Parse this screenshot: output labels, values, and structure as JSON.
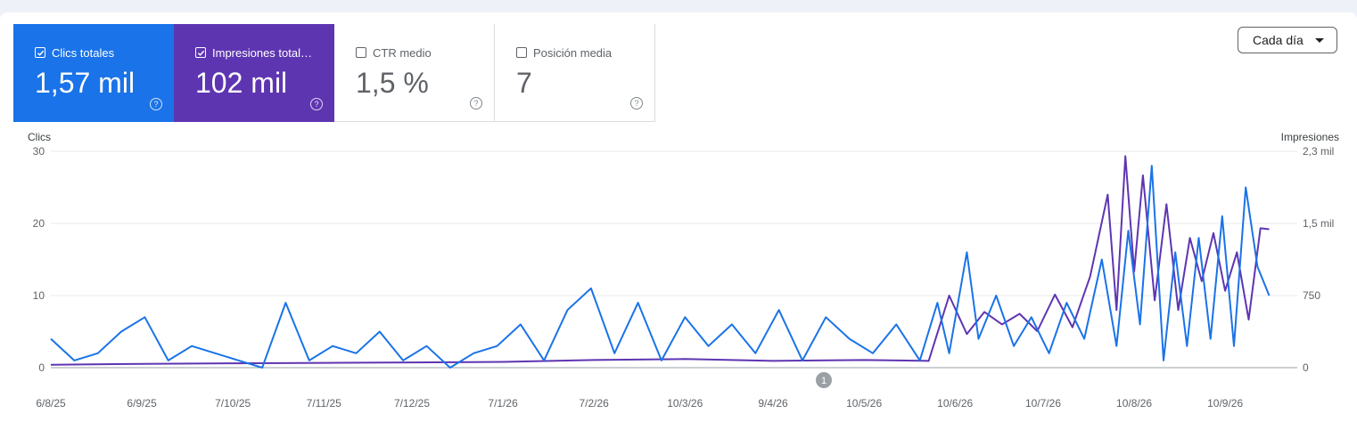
{
  "metrics": {
    "clicks": {
      "label": "Clics totales",
      "value": "1,57 mil",
      "checked": true,
      "color": "#1a73e8"
    },
    "impressions": {
      "label": "Impresiones totales",
      "value": "102 mil",
      "checked": true,
      "color": "#5e35b1"
    },
    "ctr": {
      "label": "CTR medio",
      "value": "1,5 %",
      "checked": false
    },
    "position": {
      "label": "Posición media",
      "value": "7",
      "checked": false
    }
  },
  "controls": {
    "granularity": "Cada día"
  },
  "annotation_badge": "1",
  "chart_data": {
    "type": "line",
    "left_axis": {
      "label": "Clics",
      "ticks": [
        "0",
        "10",
        "20",
        "30"
      ],
      "range": [
        0,
        30
      ]
    },
    "right_axis": {
      "label": "Impresiones",
      "ticks": [
        "0",
        "750",
        "1,5 mil",
        "2,3 mil"
      ],
      "range": [
        0,
        2250
      ]
    },
    "x_tick_labels": [
      "6/8/25",
      "6/9/25",
      "7/10/25",
      "7/11/25",
      "7/12/25",
      "7/1/26",
      "7/2/26",
      "10/3/26",
      "9/4/26",
      "10/5/26",
      "10/6/26",
      "10/7/26",
      "10/8/26",
      "10/9/26"
    ],
    "x_ticks": [
      "2025-08-06",
      "2025-09-06",
      "2025-10-07",
      "2025-11-07",
      "2025-12-07",
      "2026-01-07",
      "2026-02-07",
      "2026-03-10",
      "2026-04-09",
      "2026-05-10",
      "2026-06-10",
      "2026-07-10",
      "2026-08-10",
      "2026-09-10"
    ],
    "series": [
      {
        "name": "Clics",
        "axis": "left",
        "color": "#1a73e8",
        "x": [
          "2025-08-06",
          "2025-08-14",
          "2025-08-22",
          "2025-08-30",
          "2025-09-07",
          "2025-09-15",
          "2025-09-23",
          "2025-10-01",
          "2025-10-09",
          "2025-10-17",
          "2025-10-25",
          "2025-11-02",
          "2025-11-10",
          "2025-11-18",
          "2025-11-26",
          "2025-12-04",
          "2025-12-12",
          "2025-12-20",
          "2025-12-28",
          "2026-01-05",
          "2026-01-13",
          "2026-01-21",
          "2026-01-29",
          "2026-02-06",
          "2026-02-14",
          "2026-02-22",
          "2026-03-02",
          "2026-03-10",
          "2026-03-18",
          "2026-03-26",
          "2026-04-03",
          "2026-04-11",
          "2026-04-19",
          "2026-04-27",
          "2026-05-05",
          "2026-05-13",
          "2026-05-21",
          "2026-05-29",
          "2026-06-04",
          "2026-06-08",
          "2026-06-14",
          "2026-06-18",
          "2026-06-24",
          "2026-06-30",
          "2026-07-06",
          "2026-07-12",
          "2026-07-18",
          "2026-07-24",
          "2026-07-30",
          "2026-08-04",
          "2026-08-08",
          "2026-08-12",
          "2026-08-16",
          "2026-08-20",
          "2026-08-24",
          "2026-08-28",
          "2026-09-01",
          "2026-09-05",
          "2026-09-09",
          "2026-09-13",
          "2026-09-17",
          "2026-09-21",
          "2026-09-25"
        ],
        "values": [
          4,
          1,
          2,
          5,
          7,
          1,
          3,
          2,
          1,
          0,
          9,
          1,
          3,
          2,
          5,
          1,
          3,
          0,
          2,
          3,
          6,
          1,
          8,
          11,
          2,
          9,
          1,
          7,
          3,
          6,
          2,
          8,
          1,
          7,
          4,
          2,
          6,
          1,
          9,
          2,
          16,
          4,
          10,
          3,
          7,
          2,
          9,
          4,
          15,
          3,
          19,
          6,
          28,
          1,
          16,
          3,
          18,
          4,
          21,
          3,
          25,
          14,
          10
        ]
      },
      {
        "name": "Impresiones",
        "axis": "right",
        "color": "#5e35b1",
        "x": [
          "2025-08-06",
          "2025-09-06",
          "2025-10-07",
          "2025-11-07",
          "2025-12-07",
          "2026-01-07",
          "2026-02-07",
          "2026-03-10",
          "2026-04-09",
          "2026-05-10",
          "2026-06-01",
          "2026-06-08",
          "2026-06-14",
          "2026-06-20",
          "2026-06-26",
          "2026-07-02",
          "2026-07-08",
          "2026-07-14",
          "2026-07-20",
          "2026-07-26",
          "2026-08-01",
          "2026-08-04",
          "2026-08-07",
          "2026-08-10",
          "2026-08-13",
          "2026-08-17",
          "2026-08-21",
          "2026-08-25",
          "2026-08-29",
          "2026-09-02",
          "2026-09-06",
          "2026-09-10",
          "2026-09-14",
          "2026-09-18",
          "2026-09-22",
          "2026-09-25"
        ],
        "values": [
          30,
          40,
          45,
          50,
          55,
          60,
          80,
          90,
          70,
          80,
          70,
          750,
          350,
          580,
          450,
          560,
          380,
          760,
          420,
          950,
          1800,
          600,
          2200,
          1000,
          2000,
          700,
          1700,
          600,
          1350,
          900,
          1400,
          800,
          1200,
          500,
          1450,
          1440
        ]
      }
    ]
  }
}
